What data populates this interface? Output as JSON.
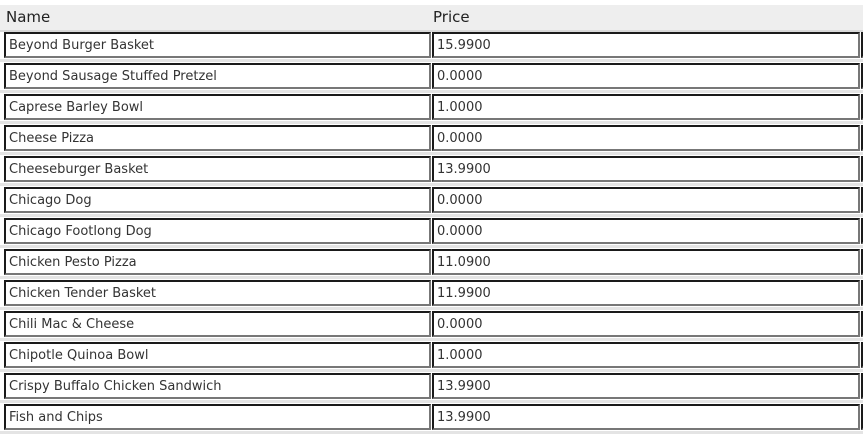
{
  "headers": {
    "name": "Name",
    "price": "Price"
  },
  "rows": [
    {
      "name": "Beyond Burger Basket",
      "price": "15.9900"
    },
    {
      "name": "Beyond Sausage Stuffed Pretzel",
      "price": "0.0000"
    },
    {
      "name": "Caprese Barley Bowl",
      "price": "1.0000"
    },
    {
      "name": "Cheese Pizza",
      "price": "0.0000"
    },
    {
      "name": "Cheeseburger Basket",
      "price": "13.9900"
    },
    {
      "name": "Chicago Dog",
      "price": "0.0000"
    },
    {
      "name": "Chicago Footlong Dog",
      "price": "0.0000"
    },
    {
      "name": "Chicken Pesto Pizza",
      "price": "11.0900"
    },
    {
      "name": "Chicken Tender Basket",
      "price": "11.9900"
    },
    {
      "name": "Chili Mac & Cheese",
      "price": "0.0000"
    },
    {
      "name": "Chipotle Quinoa Bowl",
      "price": "1.0000"
    },
    {
      "name": "Crispy Buffalo Chicken Sandwich",
      "price": "13.9900"
    },
    {
      "name": "Fish and Chips",
      "price": "13.9900"
    }
  ]
}
